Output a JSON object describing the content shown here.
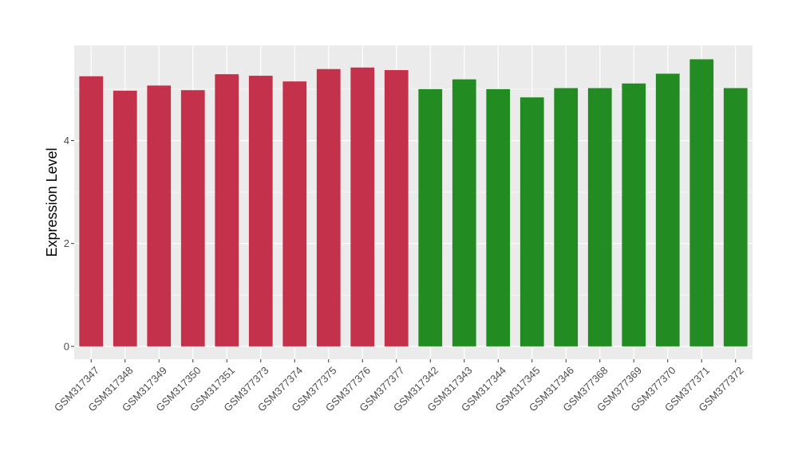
{
  "chart_data": {
    "type": "bar",
    "title": "",
    "xlabel": "",
    "ylabel": "Expression Level",
    "ylim": [
      -0.25,
      5.85
    ],
    "yticks": [
      0,
      2,
      4
    ],
    "grid": true,
    "legend": "none",
    "colors": {
      "group_a": "#C4314B",
      "group_b": "#228B22",
      "panel_bg": "#EBEBEB",
      "grid": "#FFFFFF"
    },
    "categories": [
      "GSM317347",
      "GSM317348",
      "GSM317349",
      "GSM317350",
      "GSM317351",
      "GSM377373",
      "GSM377374",
      "GSM377375",
      "GSM377376",
      "GSM377377",
      "GSM317342",
      "GSM317343",
      "GSM317344",
      "GSM317345",
      "GSM317346",
      "GSM377368",
      "GSM377369",
      "GSM377370",
      "GSM377371",
      "GSM377372"
    ],
    "values": [
      5.25,
      4.97,
      5.07,
      4.98,
      5.29,
      5.26,
      5.15,
      5.39,
      5.42,
      5.37,
      5.0,
      5.19,
      5.0,
      4.84,
      5.02,
      5.02,
      5.11,
      5.3,
      5.58,
      5.02
    ],
    "bar_groups": [
      "a",
      "a",
      "a",
      "a",
      "a",
      "a",
      "a",
      "a",
      "a",
      "a",
      "b",
      "b",
      "b",
      "b",
      "b",
      "b",
      "b",
      "b",
      "b",
      "b"
    ]
  }
}
